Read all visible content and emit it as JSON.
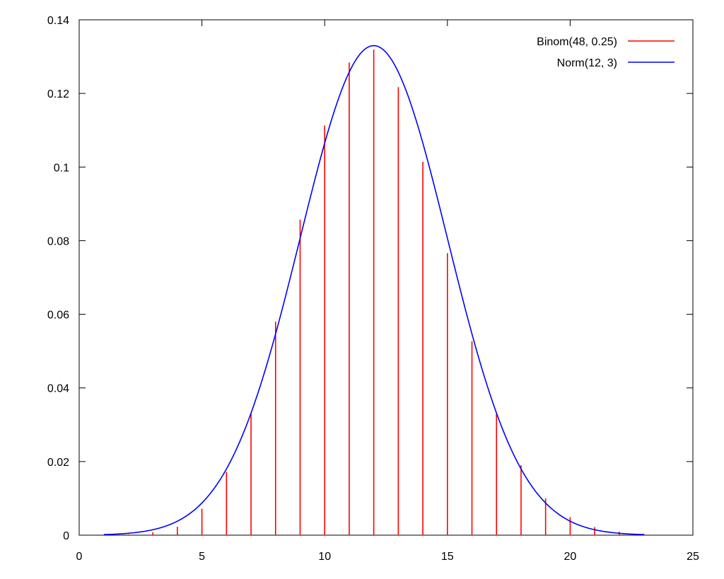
{
  "chart_data": {
    "type": "line",
    "title": "",
    "xlabel": "",
    "ylabel": "",
    "xlim": [
      0,
      25
    ],
    "ylim": [
      0,
      0.14
    ],
    "xticks": [
      0,
      5,
      10,
      15,
      20,
      25
    ],
    "yticks": [
      0,
      0.02,
      0.04,
      0.06,
      0.08,
      0.1,
      0.12,
      0.14
    ],
    "xtick_labels": [
      "0",
      "5",
      "10",
      "15",
      "20",
      "25"
    ],
    "ytick_labels": [
      "0",
      "0.02",
      "0.04",
      "0.06",
      "0.08",
      "0.1",
      "0.12",
      "0.14"
    ],
    "grid": false,
    "legend_position": "top-right",
    "series": [
      {
        "name": "Binom(48, 0.25)",
        "kind": "impulses",
        "color": "#ff0000",
        "x": [
          1,
          2,
          3,
          4,
          5,
          6,
          7,
          8,
          9,
          10,
          11,
          12,
          13,
          14,
          15,
          16,
          17,
          18,
          19,
          20,
          21,
          22,
          23
        ],
        "values": [
          5e-05,
          0.0002,
          0.0008,
          0.0023,
          0.0072,
          0.0172,
          0.033,
          0.058,
          0.0857,
          0.1113,
          0.1284,
          0.1319,
          0.1217,
          0.1014,
          0.0766,
          0.0527,
          0.0331,
          0.019,
          0.01,
          0.0049,
          0.0022,
          0.0009,
          0.0004
        ]
      },
      {
        "name": "Norm(12, 3)",
        "kind": "curve",
        "color": "#0000ff",
        "mean": 12,
        "sd": 3,
        "x_range": [
          1,
          23
        ]
      }
    ]
  }
}
